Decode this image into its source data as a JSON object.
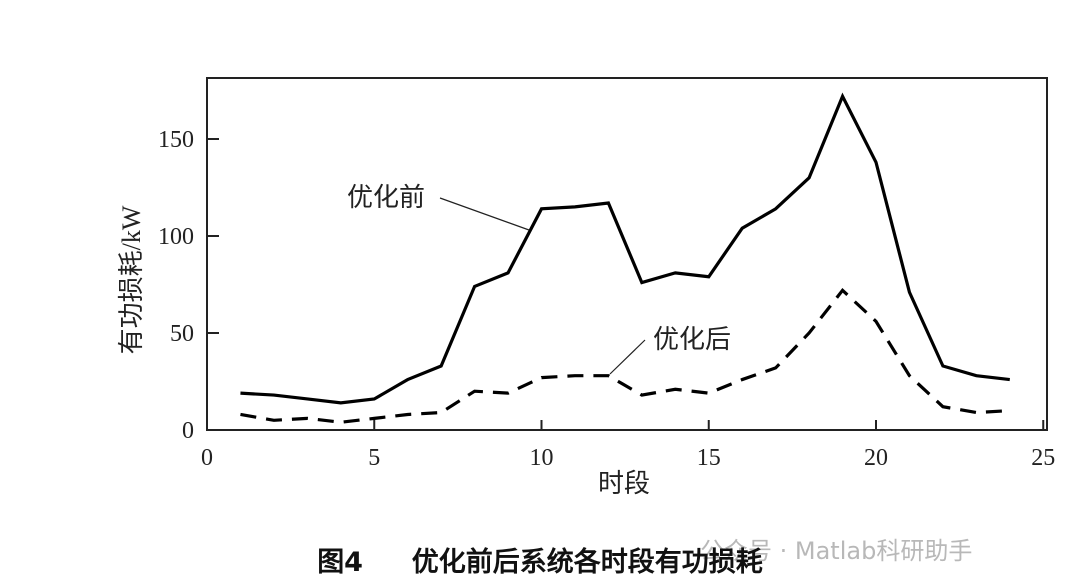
{
  "chart_data": {
    "type": "line",
    "title": "",
    "xlabel": "时段",
    "ylabel": "有功损耗/kW",
    "xlim": [
      0,
      25
    ],
    "ylim": [
      0,
      180
    ],
    "xticks": [
      0,
      5,
      10,
      15,
      20,
      25
    ],
    "yticks": [
      0,
      50,
      100,
      150
    ],
    "grid": false,
    "x": [
      1,
      2,
      3,
      4,
      5,
      6,
      7,
      8,
      9,
      10,
      11,
      12,
      13,
      14,
      15,
      16,
      17,
      18,
      19,
      20,
      21,
      22,
      23,
      24
    ],
    "series": [
      {
        "name": "优化前",
        "style": "solid",
        "color": "#000000",
        "values": [
          19,
          18,
          16,
          14,
          16,
          26,
          33,
          74,
          81,
          114,
          115,
          117,
          76,
          81,
          79,
          104,
          114,
          130,
          172,
          138,
          71,
          33,
          28,
          26
        ]
      },
      {
        "name": "优化后",
        "style": "dashed",
        "color": "#000000",
        "values": [
          8,
          5,
          6,
          4,
          6,
          8,
          9,
          20,
          19,
          27,
          28,
          28,
          18,
          21,
          19,
          26,
          32,
          50,
          72,
          56,
          28,
          12,
          9,
          10
        ]
      }
    ],
    "annotations": [
      "优化前",
      "优化后"
    ]
  },
  "caption": {
    "label": "图4",
    "text": "优化前后系统各时段有功损耗"
  },
  "watermark": "公众号 · Matlab科研助手",
  "ylabel_color": "#2f4f3f"
}
